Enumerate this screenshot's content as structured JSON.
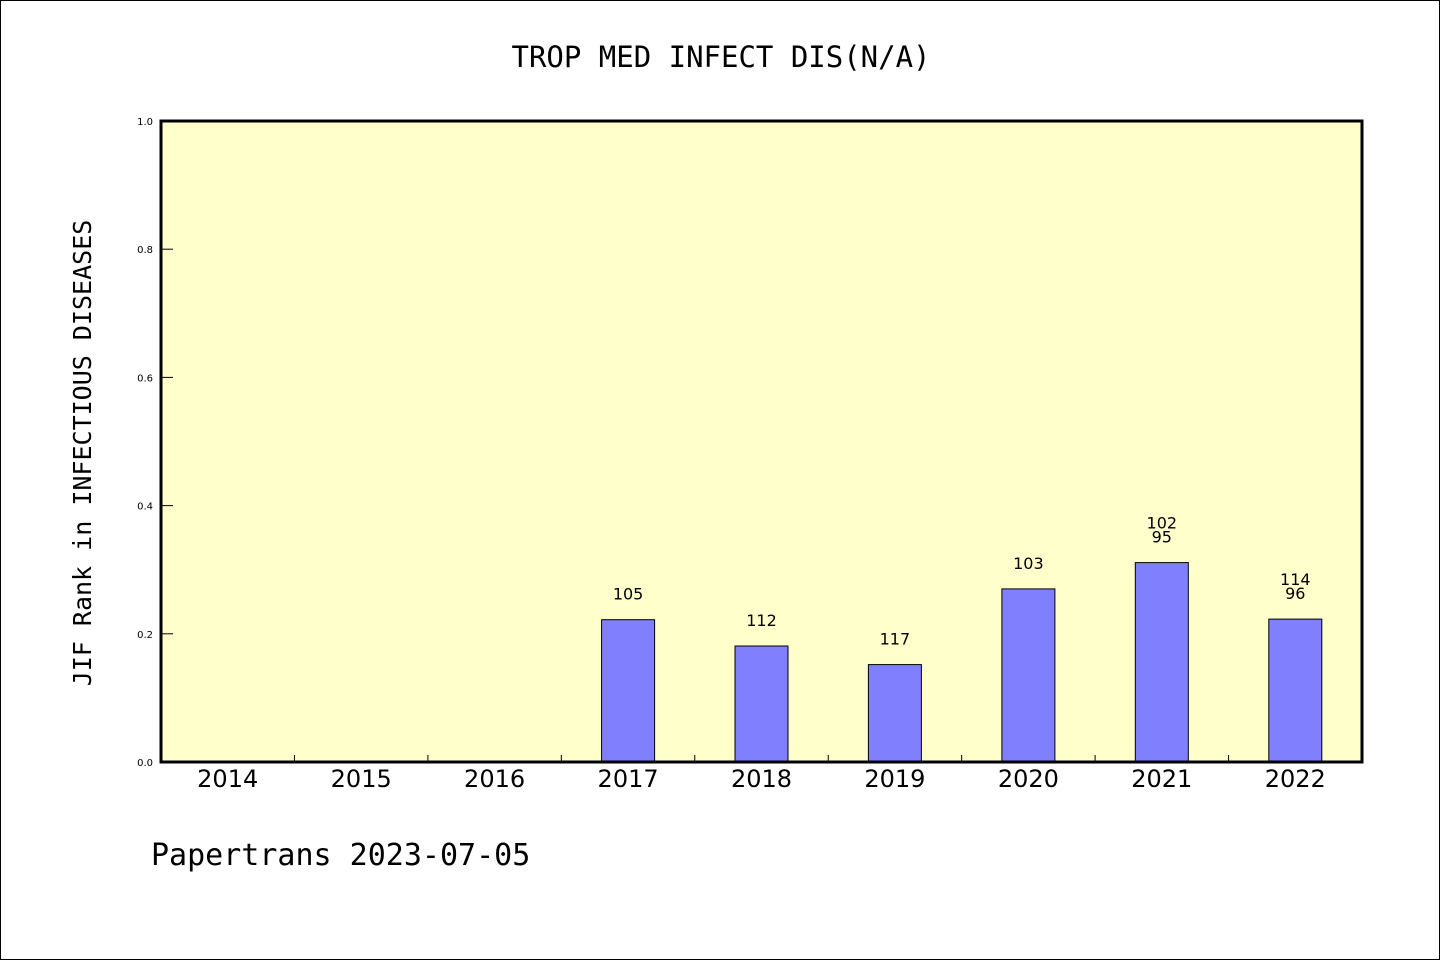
{
  "chart_data": {
    "type": "bar",
    "title": "TROP MED INFECT DIS(N/A)",
    "xlabel": "",
    "ylabel": "JIF Rank in INFECTIOUS DISEASES",
    "ylim": [
      0,
      1.0
    ],
    "yticks": [
      "0.0",
      "0.2",
      "0.4",
      "0.6",
      "0.8",
      "1.0"
    ],
    "categories": [
      "2014",
      "2015",
      "2016",
      "2017",
      "2018",
      "2019",
      "2020",
      "2021",
      "2022"
    ],
    "values": [
      null,
      null,
      null,
      0.222,
      0.181,
      0.152,
      0.27,
      0.311,
      0.223
    ],
    "data_labels": [
      [],
      [],
      [],
      [
        "105"
      ],
      [
        "112"
      ],
      [
        "117"
      ],
      [
        "103"
      ],
      [
        "102",
        "95"
      ],
      [
        "114",
        "96"
      ]
    ],
    "grid": false,
    "legend": "none",
    "colors": {
      "plot_background": "#ffffcc",
      "bar_fill": "#8080ff",
      "axis": "#000000"
    }
  },
  "footer": "Papertrans 2023-07-05"
}
